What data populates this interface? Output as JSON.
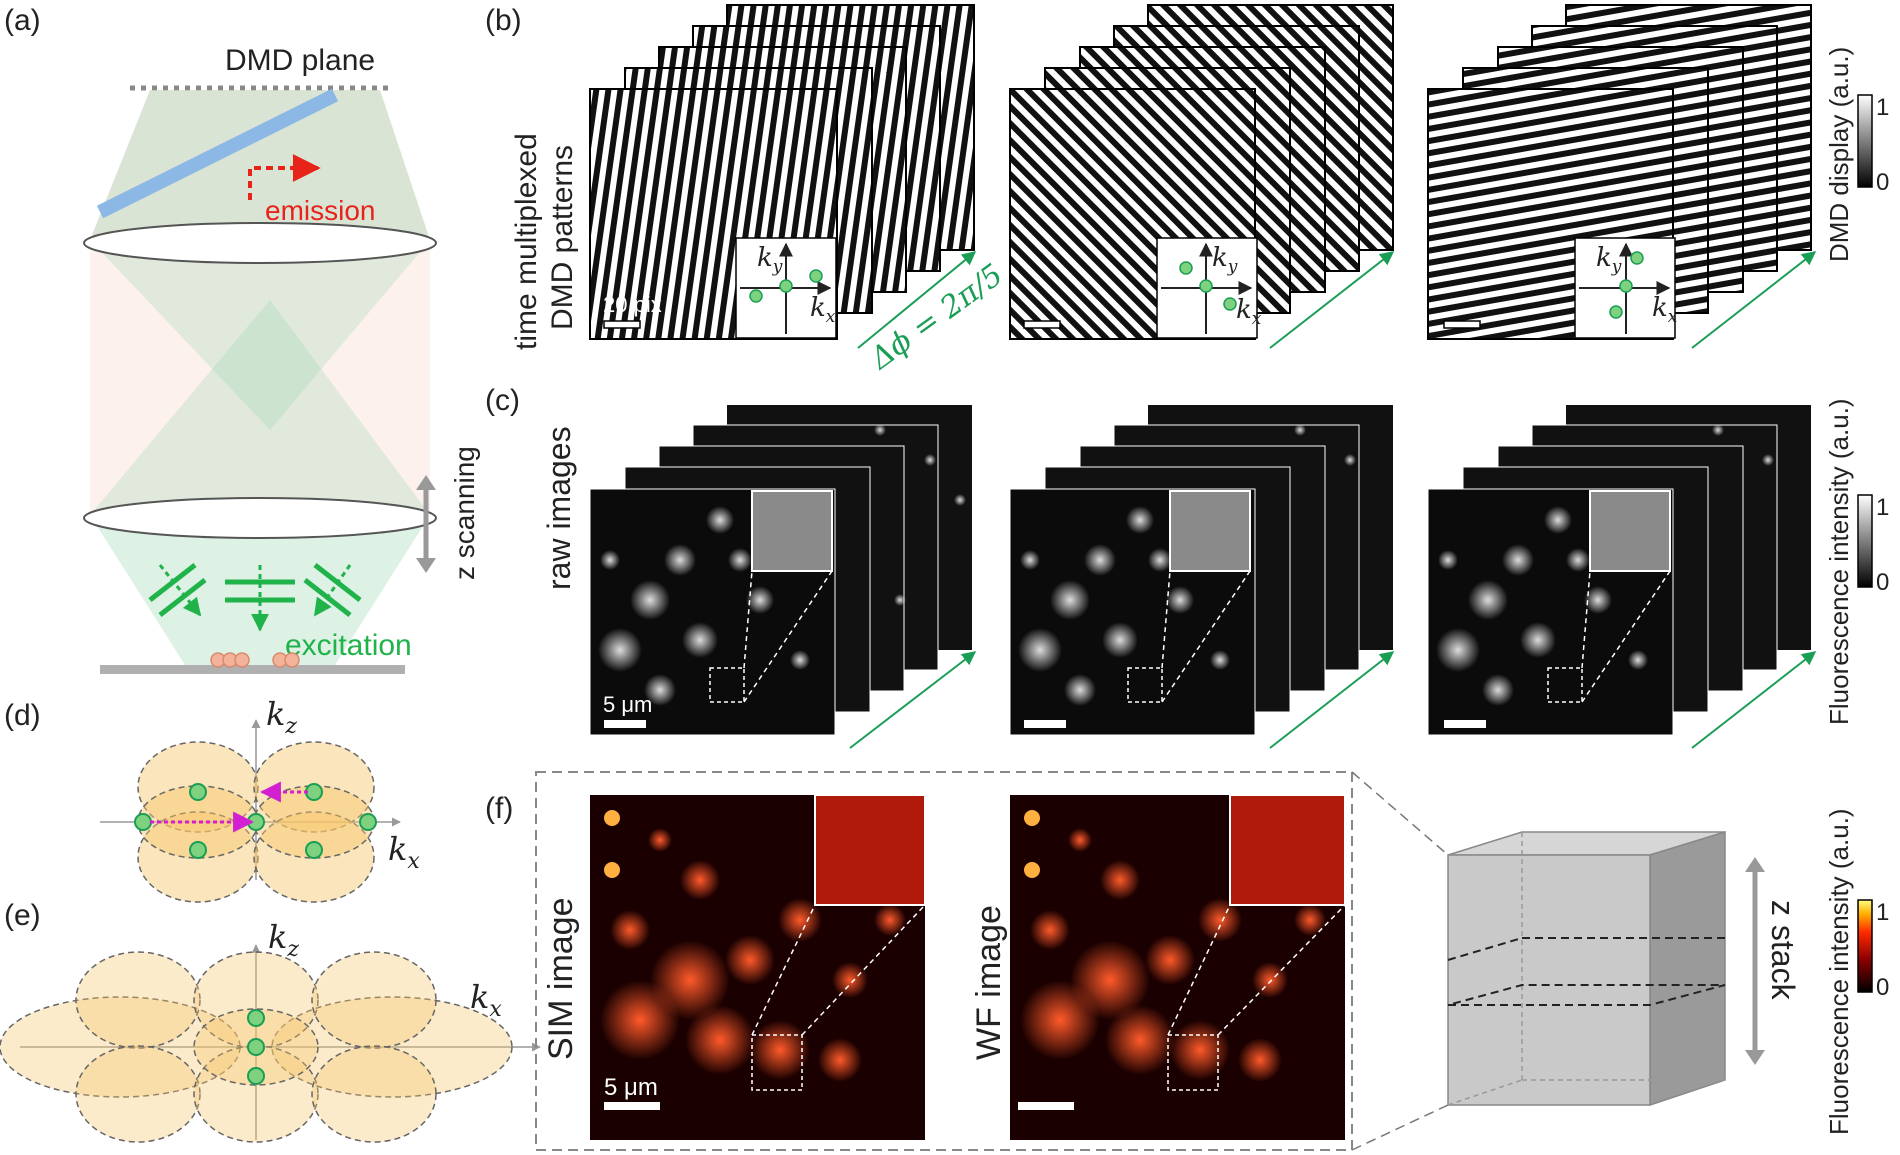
{
  "panels": {
    "a": {
      "letter": "(a)",
      "dmd_plane": "DMD plane",
      "emission": "emission",
      "z_scanning": "z scanning",
      "excitation": "excitation"
    },
    "b": {
      "letter": "(b)",
      "row_label_line1": "time multiplexed",
      "row_label_line2": "DMD patterns",
      "scalebar": "20 pix",
      "phase_step": "Δϕ = 2π/5",
      "kx": "k",
      "ky": "k",
      "kx_sub": "x",
      "ky_sub": "y",
      "colorbar_label": "DMD display (a.u.)",
      "colorbar_max": "1",
      "colorbar_min": "0"
    },
    "c": {
      "letter": "(c)",
      "row_label": "raw images",
      "scalebar": "5 μm",
      "colorbar_label": "Fluorescence intensity (a.u.)",
      "colorbar_max": "1",
      "colorbar_min": "0"
    },
    "d": {
      "letter": "(d)",
      "kz": "k",
      "kz_sub": "z",
      "kx": "k",
      "kx_sub": "x"
    },
    "e": {
      "letter": "(e)",
      "kz": "k",
      "kz_sub": "z",
      "kx": "k",
      "kx_sub": "x"
    },
    "f": {
      "letter": "(f)",
      "sim_label": "SIM image",
      "wf_label": "WF image",
      "scalebar": "5 μm",
      "z_stack": "z stack",
      "colorbar_label": "Fluorescence intensity (a.u.)",
      "colorbar_max": "1",
      "colorbar_min": "0"
    }
  },
  "colors": {
    "green": "#1a9e55",
    "red": "#e8231a",
    "magenta": "#d21fd2",
    "excitation_green": "#1fb34a",
    "beam_green": "#9fd8b5",
    "beam_pink": "#f4c8b8",
    "lobe_orange": "#f6c66a"
  }
}
